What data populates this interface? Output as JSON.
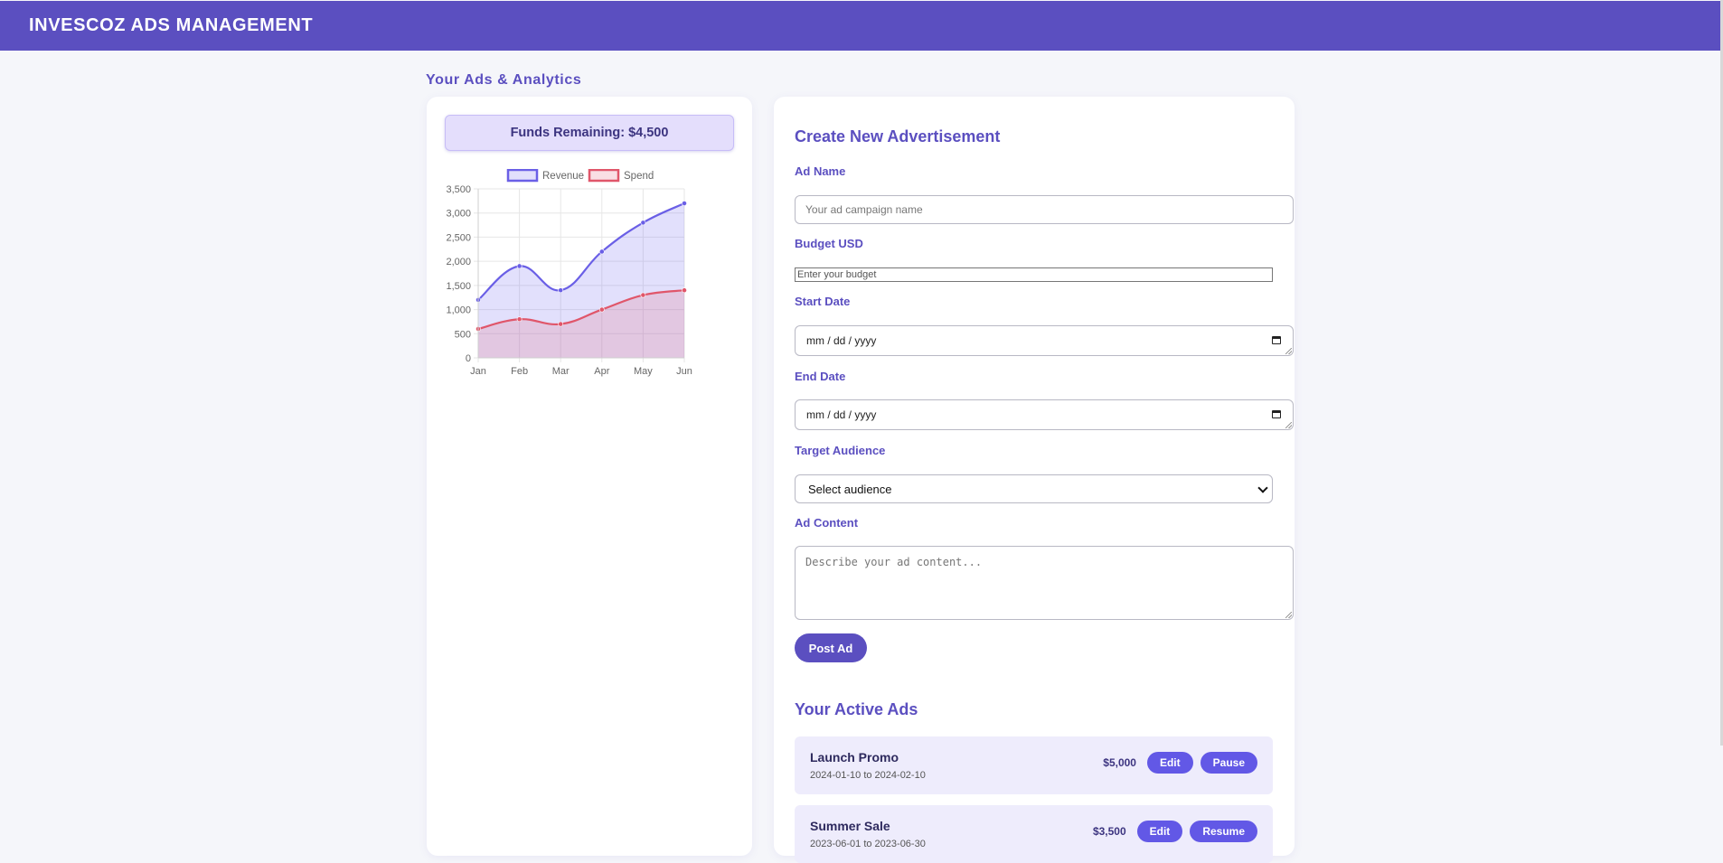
{
  "app": {
    "title": "INVESCOZ ADS MANAGEMENT"
  },
  "analytics": {
    "section_title": "Your Ads & Analytics",
    "funds_label": "Funds Remaining:",
    "funds_value": "$4,500"
  },
  "chart_data": {
    "type": "line",
    "area_fill": true,
    "categories": [
      "Jan",
      "Feb",
      "Mar",
      "Apr",
      "May",
      "Jun"
    ],
    "series": [
      {
        "name": "Revenue",
        "values": [
          1200,
          1900,
          1400,
          2200,
          2800,
          3200
        ],
        "color": "#6a5fe6",
        "fill": "rgba(124,112,240,0.22)"
      },
      {
        "name": "Spend",
        "values": [
          600,
          800,
          700,
          1000,
          1300,
          1400
        ],
        "color": "#e0566a",
        "fill": "rgba(228,110,130,0.22)"
      }
    ],
    "ylim": [
      0,
      3500
    ],
    "yticks": [
      "0",
      "500",
      "1,000",
      "1,500",
      "2,000",
      "2,500",
      "3,000",
      "3,500"
    ],
    "grid": true,
    "legend": "top"
  },
  "form": {
    "heading": "Create New Advertisement",
    "ad_name_label": "Ad Name",
    "ad_name_placeholder": "Your ad campaign name",
    "budget_label": "Budget USD",
    "budget_placeholder": "Enter your budget",
    "start_label": "Start Date",
    "start_value": "mm / dd / yyyy",
    "end_label": "End Date",
    "end_value": "mm / dd / yyyy",
    "audience_label": "Target Audience",
    "audience_selected": "Select audience",
    "content_label": "Ad Content",
    "content_placeholder": "Describe your ad content...",
    "submit_label": "Post Ad"
  },
  "active_ads": {
    "heading": "Your Active Ads",
    "items": [
      {
        "name": "Launch Promo",
        "dates": "2024-01-10 to 2024-02-10",
        "budget": "$5,000",
        "edit_label": "Edit",
        "action_label": "Pause"
      },
      {
        "name": "Summer Sale",
        "dates": "2023-06-01 to 2023-06-30",
        "budget": "$3,500",
        "edit_label": "Edit",
        "action_label": "Resume"
      }
    ]
  }
}
